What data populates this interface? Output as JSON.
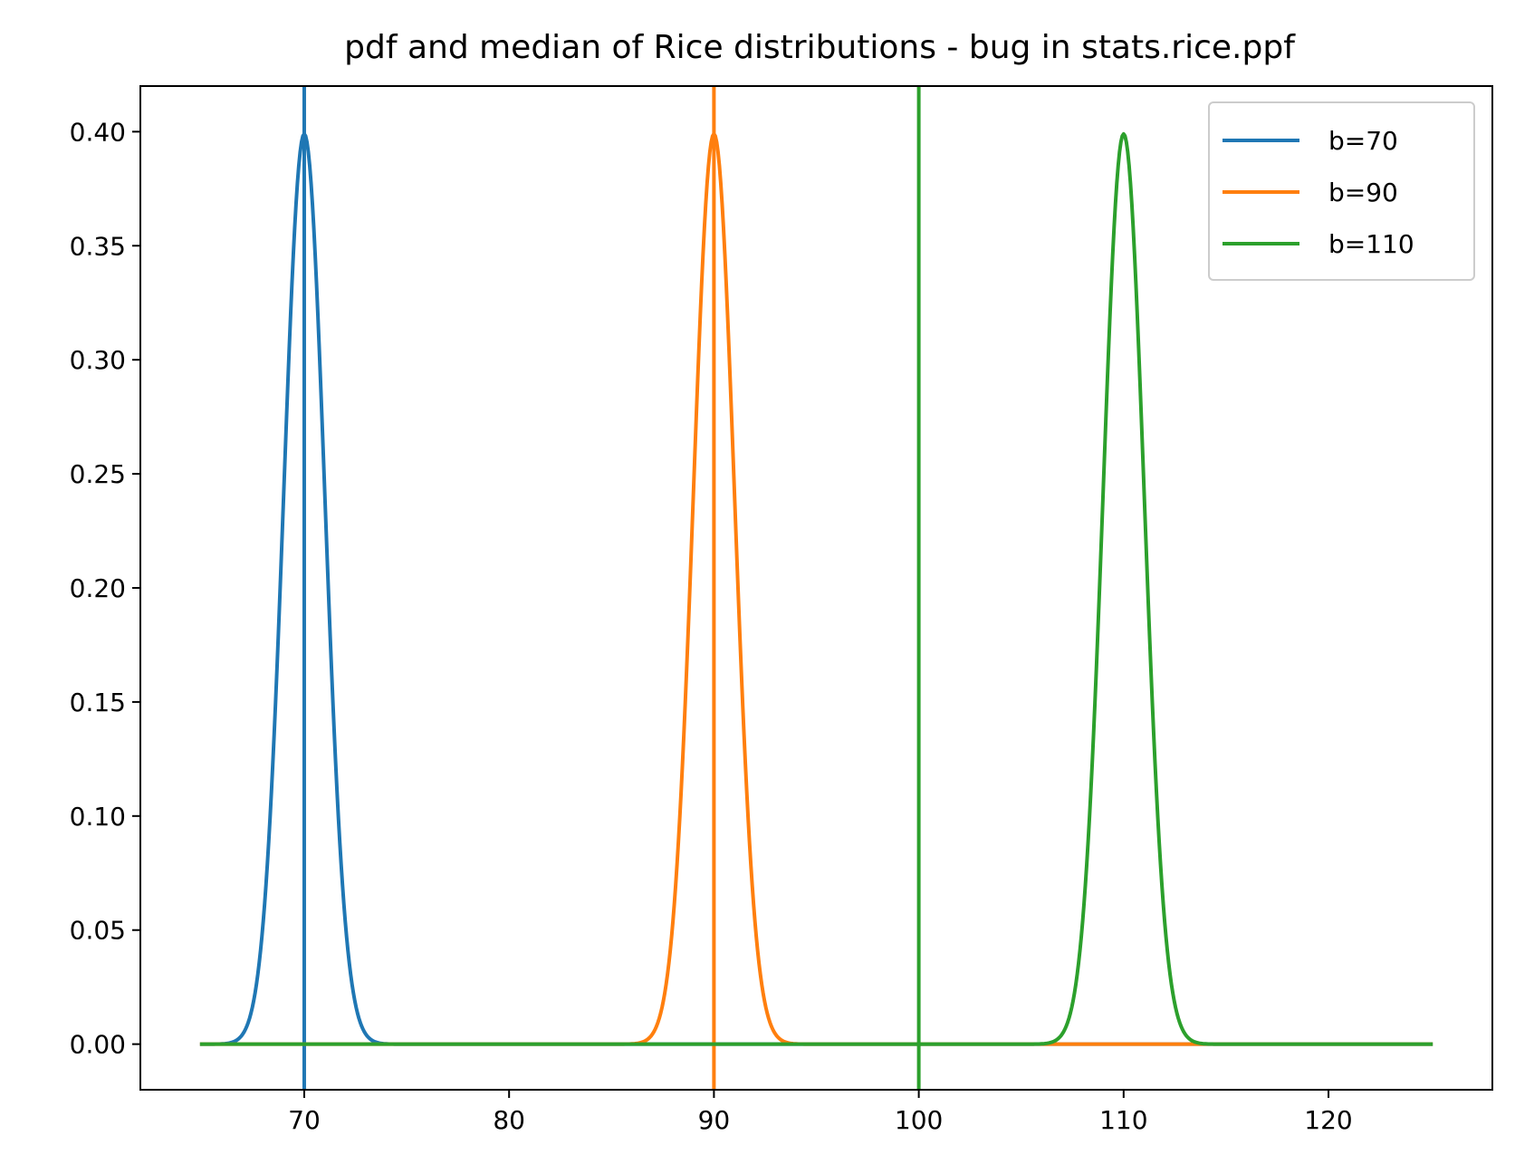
{
  "chart_data": {
    "type": "line",
    "title": "pdf and median of Rice distributions - bug in stats.rice.ppf",
    "xlabel": "",
    "ylabel": "",
    "xlim": [
      62,
      128
    ],
    "ylim": [
      -0.02,
      0.42
    ],
    "xticks": [
      70,
      80,
      90,
      100,
      110,
      120
    ],
    "xtick_labels": [
      "70",
      "80",
      "90",
      "100",
      "110",
      "120"
    ],
    "yticks": [
      0.0,
      0.05,
      0.1,
      0.15,
      0.2,
      0.25,
      0.3,
      0.35,
      0.4
    ],
    "ytick_labels": [
      "0.00",
      "0.05",
      "0.10",
      "0.15",
      "0.20",
      "0.25",
      "0.30",
      "0.35",
      "0.40"
    ],
    "x_range": [
      65,
      125
    ],
    "grid": false,
    "legend_position": "top-right",
    "series": [
      {
        "name": "b=70",
        "color": "#1f77b4",
        "peak_x": 70,
        "peak_y": 0.399,
        "sigma": 1,
        "median_line_x": 70
      },
      {
        "name": "b=90",
        "color": "#ff7f0e",
        "peak_x": 90,
        "peak_y": 0.399,
        "sigma": 1,
        "median_line_x": 90
      },
      {
        "name": "b=110",
        "color": "#2ca02c",
        "peak_x": 110,
        "peak_y": 0.399,
        "sigma": 1,
        "median_line_x": 100
      }
    ]
  }
}
